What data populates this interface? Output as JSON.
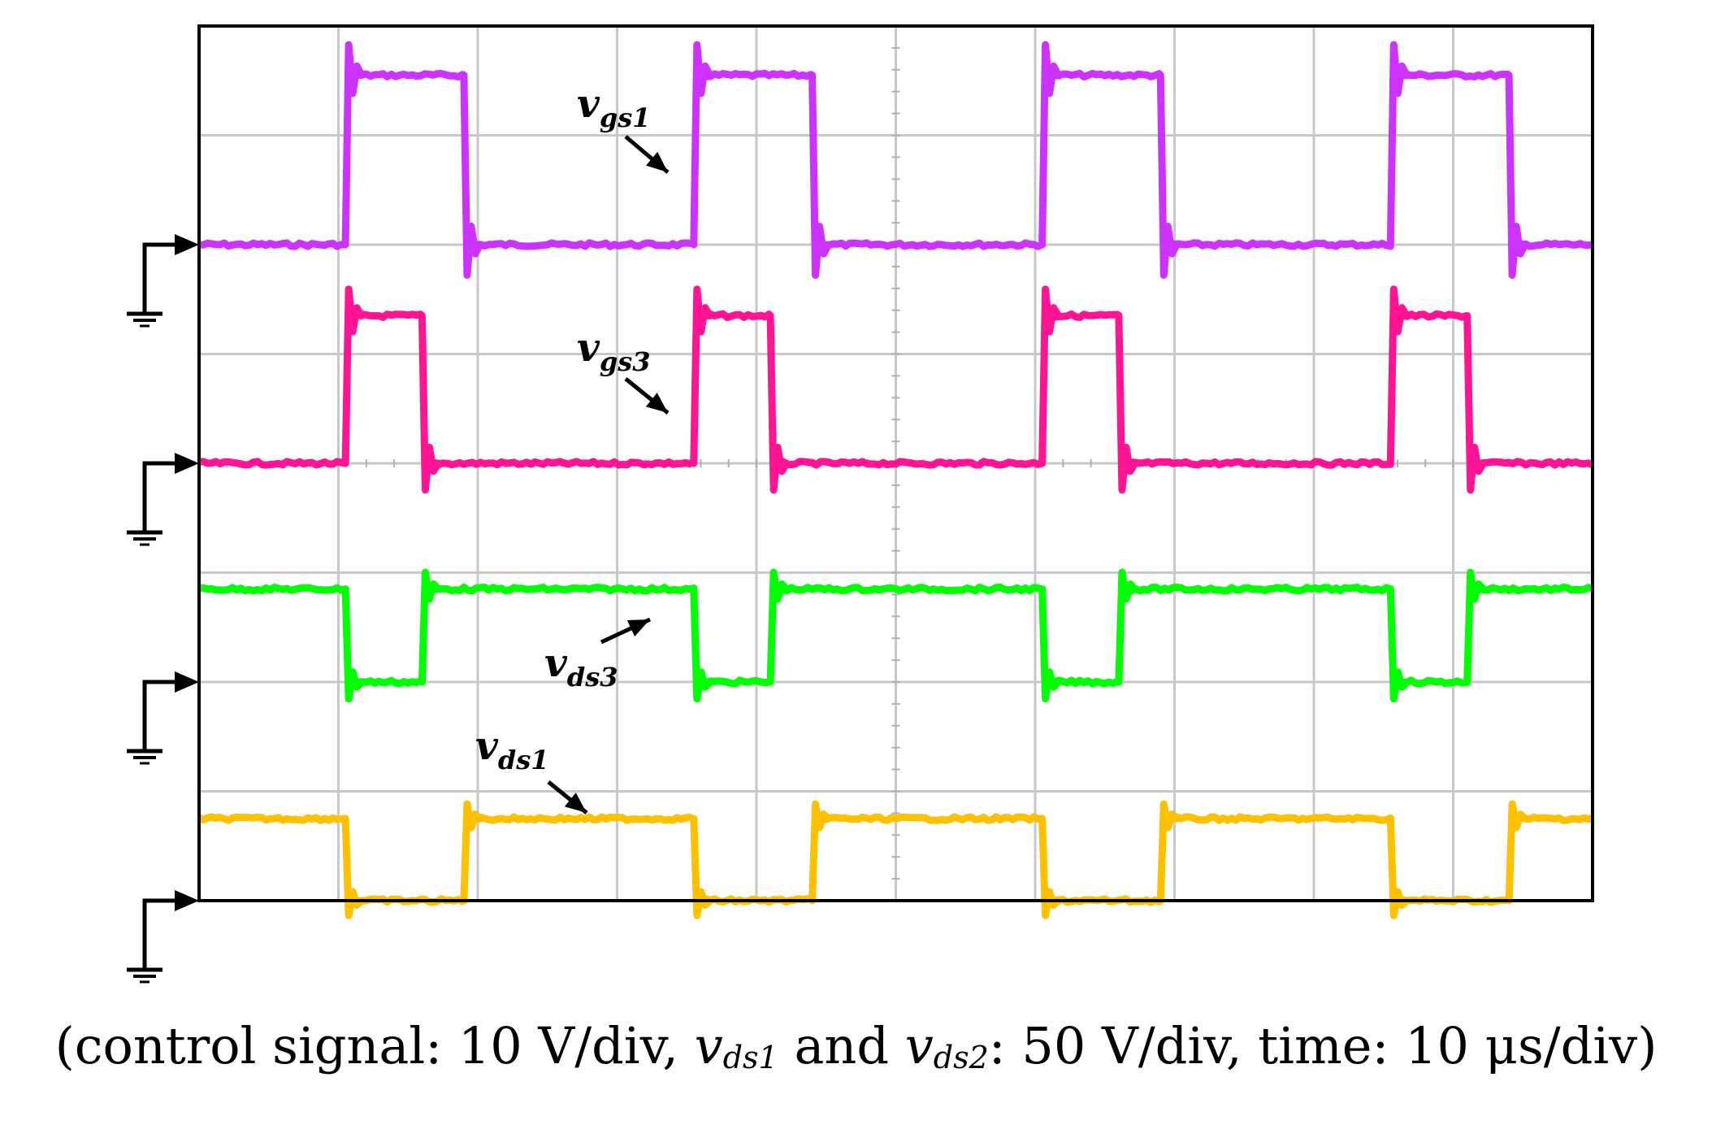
{
  "chart_data": {
    "type": "line",
    "title": "",
    "caption": {
      "prefix": "(control signal: 10 V/div, ",
      "v1": "v",
      "v1_sub": "ds1",
      "mid": " and ",
      "v2": "v",
      "v2_sub": "ds2",
      "suffix": ": 50 V/div, time: 10 μs/div)"
    },
    "grid": true,
    "divisions": {
      "x": 10,
      "y": 8
    },
    "x_range_div": [
      0,
      10
    ],
    "period_div": 2.5,
    "series": [
      {
        "label_main": "v",
        "label_sub": "gs1",
        "color": "#cc33ff",
        "ground_level_div": 2.0,
        "low_div": 2.0,
        "high_div": 0.45,
        "rise_at_div": [
          1.05,
          3.55,
          6.05,
          8.55
        ],
        "fall_at_div": [
          1.9,
          4.4,
          6.9,
          9.4
        ]
      },
      {
        "label_main": "v",
        "label_sub": "gs3",
        "color": "#ff1493",
        "ground_level_div": 4.0,
        "low_div": 4.0,
        "high_div": 2.65,
        "rise_at_div": [
          1.05,
          3.55,
          6.05,
          8.55
        ],
        "fall_at_div": [
          1.6,
          4.1,
          6.6,
          9.1
        ]
      },
      {
        "label_main": "v",
        "label_sub": "ds3",
        "color": "#00ff00",
        "ground_level_div": 6.0,
        "low_div": 6.0,
        "high_div": 5.15,
        "fall_at_div": [
          1.05,
          3.55,
          6.05,
          8.55
        ],
        "rise_at_div": [
          1.6,
          4.1,
          6.6,
          9.1
        ]
      },
      {
        "label_main": "v",
        "label_sub": "ds1",
        "color": "#ffc000",
        "ground_level_div": 8.0,
        "low_div": 8.0,
        "high_div": 7.25,
        "fall_at_div": [
          1.05,
          3.55,
          6.05,
          8.55
        ],
        "rise_at_div": [
          1.9,
          4.4,
          6.9,
          9.4
        ]
      }
    ]
  }
}
